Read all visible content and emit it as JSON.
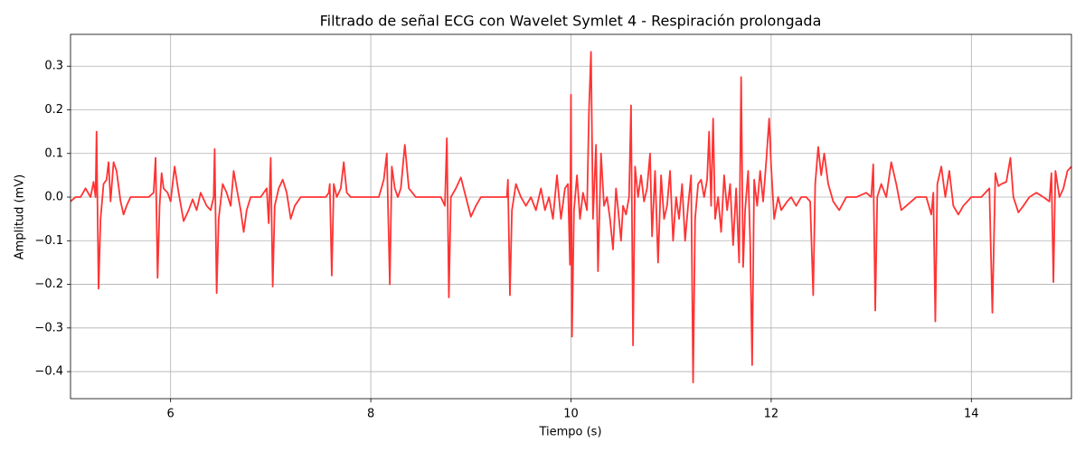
{
  "chart_data": {
    "type": "line",
    "title": "Filtrado de señal ECG con Wavelet Symlet 4 - Respiración prolongada",
    "x_label": "Tiempo (s)",
    "y_label": "Amplitud (mV)",
    "color": "#ff3333",
    "grid": true,
    "xlim": [
      5,
      15
    ],
    "ylim": [
      -0.462,
      0.373
    ],
    "xticks": [
      6,
      8,
      10,
      12,
      14
    ],
    "yticks": [
      {
        "value": -0.4,
        "label": "−0.4"
      },
      {
        "value": -0.3,
        "label": "−0.3"
      },
      {
        "value": -0.2,
        "label": "−0.2"
      },
      {
        "value": -0.1,
        "label": "−0.1"
      },
      {
        "value": 0.0,
        "label": "0.0"
      },
      0.1,
      0.2,
      0.3
    ],
    "x": [
      5.0,
      5.05,
      5.1,
      5.15,
      5.2,
      5.23,
      5.25,
      5.26,
      5.28,
      5.3,
      5.33,
      5.36,
      5.38,
      5.4,
      5.43,
      5.46,
      5.5,
      5.53,
      5.56,
      5.6,
      5.7,
      5.78,
      5.83,
      5.85,
      5.87,
      5.89,
      5.91,
      5.93,
      5.97,
      6.0,
      6.04,
      6.08,
      6.13,
      6.18,
      6.22,
      6.26,
      6.3,
      6.36,
      6.4,
      6.43,
      6.44,
      6.46,
      6.48,
      6.52,
      6.56,
      6.6,
      6.63,
      6.66,
      6.7,
      6.73,
      6.76,
      6.8,
      6.9,
      6.96,
      6.98,
      7.0,
      7.02,
      7.04,
      7.08,
      7.12,
      7.16,
      7.2,
      7.24,
      7.3,
      7.4,
      7.5,
      7.55,
      7.58,
      7.59,
      7.61,
      7.63,
      7.66,
      7.7,
      7.73,
      7.76,
      7.8,
      7.9,
      8.0,
      8.08,
      8.13,
      8.16,
      8.19,
      8.21,
      8.24,
      8.27,
      8.3,
      8.34,
      8.38,
      8.45,
      8.55,
      8.62,
      8.7,
      8.74,
      8.76,
      8.78,
      8.8,
      8.85,
      8.9,
      8.95,
      9.0,
      9.05,
      9.1,
      9.2,
      9.3,
      9.36,
      9.37,
      9.39,
      9.41,
      9.45,
      9.5,
      9.55,
      9.6,
      9.65,
      9.7,
      9.74,
      9.78,
      9.82,
      9.86,
      9.9,
      9.94,
      9.97,
      9.99,
      10.0,
      10.01,
      10.03,
      10.06,
      10.09,
      10.12,
      10.16,
      10.18,
      10.2,
      10.22,
      10.25,
      10.27,
      10.3,
      10.33,
      10.36,
      10.39,
      10.42,
      10.45,
      10.48,
      10.5,
      10.52,
      10.55,
      10.58,
      10.6,
      10.62,
      10.64,
      10.67,
      10.7,
      10.73,
      10.76,
      10.79,
      10.81,
      10.84,
      10.87,
      10.9,
      10.93,
      10.96,
      10.99,
      11.02,
      11.05,
      11.08,
      11.11,
      11.14,
      11.17,
      11.2,
      11.22,
      11.24,
      11.27,
      11.3,
      11.33,
      11.36,
      11.38,
      11.4,
      11.42,
      11.44,
      11.47,
      11.5,
      11.53,
      11.56,
      11.59,
      11.62,
      11.65,
      11.68,
      11.7,
      11.72,
      11.74,
      11.77,
      11.79,
      11.81,
      11.83,
      11.86,
      11.89,
      11.92,
      11.95,
      11.98,
      12.0,
      12.03,
      12.07,
      12.1,
      12.13,
      12.16,
      12.2,
      12.25,
      12.3,
      12.35,
      12.39,
      12.42,
      12.44,
      12.47,
      12.5,
      12.53,
      12.57,
      12.62,
      12.68,
      12.75,
      12.85,
      12.95,
      13.0,
      13.02,
      13.04,
      13.06,
      13.1,
      13.15,
      13.2,
      13.25,
      13.3,
      13.35,
      13.45,
      13.55,
      13.6,
      13.62,
      13.64,
      13.66,
      13.7,
      13.74,
      13.78,
      13.82,
      13.87,
      13.92,
      14.0,
      14.1,
      14.18,
      14.21,
      14.24,
      14.27,
      14.3,
      14.35,
      14.39,
      14.42,
      14.47,
      14.52,
      14.58,
      14.65,
      14.72,
      14.78,
      14.8,
      14.82,
      14.84,
      14.88,
      14.92,
      14.96,
      15.0
    ],
    "values": [
      -0.01,
      0.0,
      0.0,
      0.02,
      0.0,
      0.035,
      0.0,
      0.15,
      -0.21,
      -0.05,
      0.03,
      0.04,
      0.08,
      -0.01,
      0.08,
      0.06,
      -0.01,
      -0.04,
      -0.02,
      0.0,
      0.0,
      0.0,
      0.01,
      0.09,
      -0.185,
      -0.02,
      0.055,
      0.02,
      0.01,
      -0.01,
      0.07,
      0.01,
      -0.055,
      -0.03,
      -0.005,
      -0.03,
      0.01,
      -0.02,
      -0.03,
      0.0,
      0.11,
      -0.22,
      -0.05,
      0.03,
      0.01,
      -0.02,
      0.06,
      0.02,
      -0.03,
      -0.08,
      -0.03,
      0.0,
      0.0,
      0.02,
      -0.06,
      0.09,
      -0.205,
      -0.02,
      0.02,
      0.04,
      0.01,
      -0.05,
      -0.02,
      0.0,
      0.0,
      0.0,
      0.0,
      0.01,
      0.03,
      -0.18,
      0.03,
      0.0,
      0.02,
      0.08,
      0.01,
      0.0,
      0.0,
      0.0,
      0.0,
      0.04,
      0.1,
      -0.2,
      0.07,
      0.02,
      0.0,
      0.02,
      0.12,
      0.02,
      0.0,
      0.0,
      0.0,
      0.0,
      -0.02,
      0.135,
      -0.23,
      0.0,
      0.02,
      0.045,
      0.0,
      -0.045,
      -0.02,
      0.0,
      0.0,
      0.0,
      0.0,
      0.04,
      -0.225,
      -0.03,
      0.03,
      0.0,
      -0.02,
      0.0,
      -0.03,
      0.02,
      -0.03,
      0.0,
      -0.05,
      0.05,
      -0.05,
      0.02,
      0.03,
      -0.155,
      0.235,
      -0.32,
      -0.03,
      0.05,
      -0.05,
      0.01,
      -0.03,
      0.2,
      0.333,
      -0.05,
      0.12,
      -0.17,
      0.1,
      -0.02,
      0.0,
      -0.05,
      -0.12,
      0.02,
      -0.05,
      -0.1,
      -0.02,
      -0.04,
      0.0,
      0.21,
      -0.34,
      0.07,
      0.0,
      0.05,
      -0.01,
      0.02,
      0.1,
      -0.09,
      0.06,
      -0.15,
      0.05,
      -0.05,
      -0.02,
      0.06,
      -0.1,
      0.0,
      -0.05,
      0.03,
      -0.1,
      -0.02,
      0.05,
      -0.425,
      -0.05,
      0.03,
      0.04,
      0.0,
      0.04,
      0.15,
      -0.02,
      0.18,
      -0.05,
      0.0,
      -0.08,
      0.05,
      -0.03,
      0.03,
      -0.11,
      0.02,
      -0.15,
      0.275,
      -0.16,
      -0.03,
      0.06,
      -0.1,
      -0.385,
      0.04,
      -0.02,
      0.06,
      -0.01,
      0.08,
      0.18,
      0.07,
      -0.05,
      0.0,
      -0.03,
      -0.02,
      -0.01,
      0.0,
      -0.02,
      0.0,
      0.0,
      -0.01,
      -0.225,
      0.03,
      0.115,
      0.05,
      0.1,
      0.03,
      -0.01,
      -0.03,
      0.0,
      0.0,
      0.01,
      0.0,
      0.075,
      -0.26,
      0.0,
      0.03,
      0.0,
      0.08,
      0.03,
      -0.03,
      -0.02,
      0.0,
      0.0,
      -0.04,
      0.01,
      -0.285,
      0.03,
      0.07,
      0.0,
      0.06,
      -0.02,
      -0.04,
      -0.02,
      0.0,
      0.0,
      0.02,
      -0.265,
      0.055,
      0.025,
      0.03,
      0.035,
      0.09,
      0.0,
      -0.035,
      -0.02,
      0.0,
      0.01,
      0.0,
      -0.01,
      0.055,
      -0.195,
      0.06,
      0.0,
      0.02,
      0.06,
      0.07
    ]
  }
}
